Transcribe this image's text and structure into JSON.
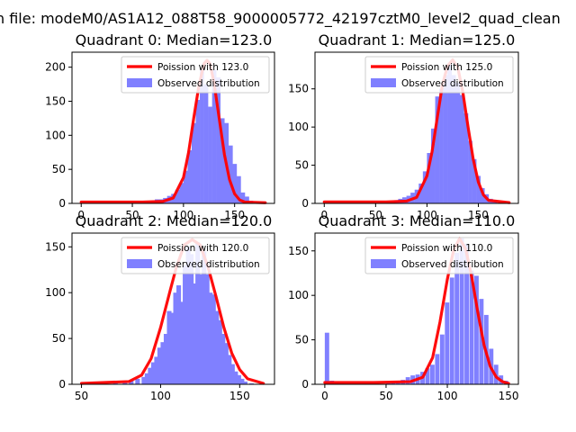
{
  "figure_title": "n file: modeM0/AS1A12_088T58_9000005772_42197cztM0_level2_quad_clean",
  "colors": {
    "poisson": "#ff0000",
    "hist": "#8080ff",
    "axis": "#000000"
  },
  "chart_data": [
    {
      "type": "bar",
      "title": "Quadrant 0: Median=123.0",
      "legend": [
        "Poission with 123.0",
        "Observed distribution"
      ],
      "legend_position": "top-right",
      "xlim": [
        -9,
        189
      ],
      "ylim": [
        0,
        222
      ],
      "xticks": [
        0,
        50,
        100,
        150
      ],
      "yticks": [
        0,
        50,
        100,
        150,
        200
      ],
      "bin_width": 4.2,
      "bins": [
        [
          60,
          1
        ],
        [
          64,
          2
        ],
        [
          68,
          4
        ],
        [
          72,
          6
        ],
        [
          76,
          6
        ],
        [
          80,
          8
        ],
        [
          84,
          11
        ],
        [
          88,
          14
        ],
        [
          92,
          20
        ],
        [
          96,
          30
        ],
        [
          100,
          48
        ],
        [
          104,
          78
        ],
        [
          108,
          118
        ],
        [
          112,
          152
        ],
        [
          116,
          196
        ],
        [
          120,
          175
        ],
        [
          124,
          142
        ],
        [
          128,
          196
        ],
        [
          132,
          185
        ],
        [
          136,
          125
        ],
        [
          140,
          118
        ],
        [
          144,
          85
        ],
        [
          148,
          58
        ],
        [
          152,
          40
        ],
        [
          156,
          16
        ],
        [
          160,
          10
        ],
        [
          164,
          4
        ]
      ],
      "poisson": [
        [
          0,
          2
        ],
        [
          60,
          2
        ],
        [
          80,
          3
        ],
        [
          90,
          8
        ],
        [
          100,
          38
        ],
        [
          105,
          75
        ],
        [
          110,
          125
        ],
        [
          115,
          172
        ],
        [
          120,
          205
        ],
        [
          123,
          210
        ],
        [
          126,
          205
        ],
        [
          130,
          176
        ],
        [
          135,
          124
        ],
        [
          140,
          72
        ],
        [
          145,
          35
        ],
        [
          150,
          14
        ],
        [
          155,
          5
        ],
        [
          160,
          2
        ],
        [
          180,
          1
        ]
      ]
    },
    {
      "type": "bar",
      "title": "Quadrant 1: Median=125.0",
      "legend": [
        "Poission with 125.0",
        "Observed distribution"
      ],
      "legend_position": "top-right",
      "xlim": [
        -9,
        189
      ],
      "ylim": [
        0,
        198
      ],
      "xticks": [
        0,
        50,
        100,
        150
      ],
      "yticks": [
        0,
        50,
        100,
        150
      ],
      "bin_width": 4.2,
      "bins": [
        [
          60,
          1
        ],
        [
          64,
          2
        ],
        [
          68,
          4
        ],
        [
          72,
          6
        ],
        [
          76,
          8
        ],
        [
          80,
          10
        ],
        [
          84,
          14
        ],
        [
          88,
          18
        ],
        [
          92,
          26
        ],
        [
          96,
          42
        ],
        [
          100,
          66
        ],
        [
          104,
          98
        ],
        [
          108,
          140
        ],
        [
          112,
          150
        ],
        [
          116,
          168
        ],
        [
          120,
          182
        ],
        [
          124,
          168
        ],
        [
          128,
          158
        ],
        [
          132,
          142
        ],
        [
          136,
          118
        ],
        [
          140,
          82
        ],
        [
          144,
          58
        ],
        [
          148,
          36
        ],
        [
          152,
          20
        ],
        [
          156,
          12
        ],
        [
          160,
          6
        ],
        [
          164,
          3
        ]
      ],
      "poisson": [
        [
          0,
          2
        ],
        [
          60,
          2
        ],
        [
          80,
          3
        ],
        [
          90,
          8
        ],
        [
          100,
          36
        ],
        [
          105,
          68
        ],
        [
          110,
          112
        ],
        [
          115,
          155
        ],
        [
          120,
          180
        ],
        [
          125,
          188
        ],
        [
          130,
          178
        ],
        [
          135,
          145
        ],
        [
          140,
          100
        ],
        [
          145,
          58
        ],
        [
          150,
          28
        ],
        [
          155,
          11
        ],
        [
          160,
          4
        ],
        [
          180,
          1
        ]
      ]
    },
    {
      "type": "bar",
      "title": "Quadrant 2: Median=120.0",
      "legend": [
        "Poission with 120.0",
        "Observed distribution"
      ],
      "legend_position": "top-right",
      "xlim": [
        44,
        172
      ],
      "ylim": [
        0,
        165
      ],
      "xticks": [
        50,
        100,
        150
      ],
      "yticks": [
        0,
        50,
        100,
        150
      ],
      "bin_width": 2.9,
      "bins": [
        [
          70,
          1
        ],
        [
          76,
          2
        ],
        [
          80,
          4
        ],
        [
          84,
          6
        ],
        [
          88,
          8
        ],
        [
          90,
          12
        ],
        [
          92,
          18
        ],
        [
          94,
          24
        ],
        [
          96,
          30
        ],
        [
          98,
          40
        ],
        [
          100,
          46
        ],
        [
          102,
          55
        ],
        [
          104,
          80
        ],
        [
          106,
          78
        ],
        [
          108,
          100
        ],
        [
          110,
          108
        ],
        [
          112,
          90
        ],
        [
          114,
          130
        ],
        [
          116,
          150
        ],
        [
          118,
          142
        ],
        [
          120,
          110
        ],
        [
          122,
          155
        ],
        [
          124,
          120
        ],
        [
          126,
          145
        ],
        [
          128,
          120
        ],
        [
          130,
          100
        ],
        [
          132,
          98
        ],
        [
          134,
          80
        ],
        [
          136,
          70
        ],
        [
          138,
          55
        ],
        [
          140,
          45
        ],
        [
          142,
          32
        ],
        [
          144,
          22
        ],
        [
          146,
          14
        ],
        [
          148,
          10
        ],
        [
          150,
          6
        ],
        [
          152,
          3
        ],
        [
          156,
          1
        ]
      ],
      "poisson": [
        [
          50,
          1
        ],
        [
          80,
          3
        ],
        [
          88,
          10
        ],
        [
          94,
          28
        ],
        [
          100,
          62
        ],
        [
          106,
          102
        ],
        [
          110,
          128
        ],
        [
          115,
          152
        ],
        [
          120,
          158
        ],
        [
          125,
          152
        ],
        [
          130,
          128
        ],
        [
          135,
          96
        ],
        [
          140,
          62
        ],
        [
          145,
          34
        ],
        [
          150,
          16
        ],
        [
          155,
          6
        ],
        [
          165,
          1
        ]
      ]
    },
    {
      "type": "bar",
      "title": "Quadrant 3: Median=110.0",
      "legend": [
        "Poission with 110.0",
        "Observed distribution"
      ],
      "legend_position": "top-right",
      "xlim": [
        -8,
        158
      ],
      "ylim": [
        0,
        170
      ],
      "xticks": [
        0,
        50,
        100,
        150
      ],
      "yticks": [
        0,
        50,
        100,
        150
      ],
      "bin_width": 3.6,
      "bins": [
        [
          0,
          58
        ],
        [
          4,
          4
        ],
        [
          8,
          2
        ],
        [
          12,
          1
        ],
        [
          50,
          1
        ],
        [
          54,
          2
        ],
        [
          58,
          3
        ],
        [
          62,
          5
        ],
        [
          66,
          8
        ],
        [
          70,
          10
        ],
        [
          74,
          11
        ],
        [
          78,
          14
        ],
        [
          82,
          18
        ],
        [
          86,
          22
        ],
        [
          90,
          34
        ],
        [
          94,
          56
        ],
        [
          98,
          92
        ],
        [
          102,
          120
        ],
        [
          106,
          148
        ],
        [
          110,
          164
        ],
        [
          114,
          158
        ],
        [
          118,
          128
        ],
        [
          122,
          122
        ],
        [
          126,
          96
        ],
        [
          130,
          78
        ],
        [
          134,
          40
        ],
        [
          138,
          22
        ],
        [
          142,
          10
        ],
        [
          146,
          4
        ]
      ],
      "poisson": [
        [
          0,
          2
        ],
        [
          40,
          2
        ],
        [
          70,
          3
        ],
        [
          80,
          8
        ],
        [
          88,
          30
        ],
        [
          94,
          70
        ],
        [
          100,
          118
        ],
        [
          105,
          150
        ],
        [
          110,
          164
        ],
        [
          115,
          152
        ],
        [
          120,
          120
        ],
        [
          125,
          80
        ],
        [
          130,
          44
        ],
        [
          135,
          20
        ],
        [
          140,
          8
        ],
        [
          145,
          3
        ],
        [
          150,
          1
        ]
      ]
    }
  ]
}
